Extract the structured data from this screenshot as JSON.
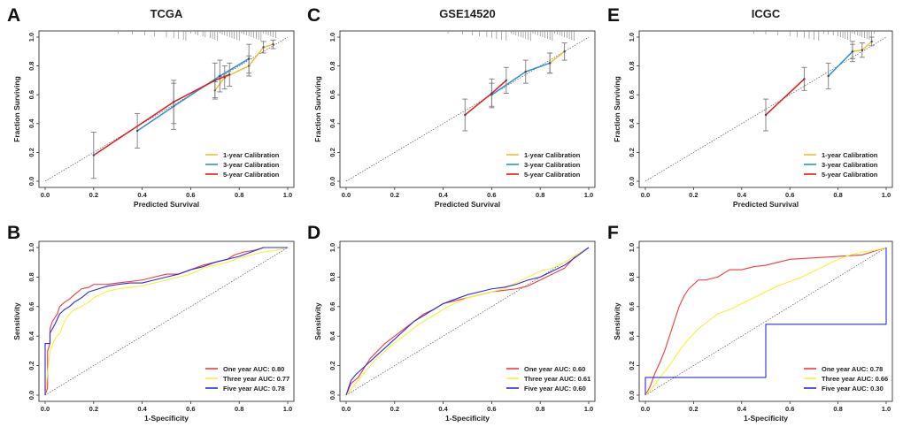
{
  "colors": {
    "yellow": "#e8c23a",
    "blue": "#2f8fd0",
    "red": "#e01b1b",
    "roc_red": "#ee3b3b",
    "roc_yellow": "#f5f03a",
    "roc_blue": "#2b2bdc",
    "grey": "#7a7a7a"
  },
  "chart_data": [
    {
      "panel": "A",
      "type": "line",
      "title": "TCGA",
      "xlabel": "Predicted  Survival",
      "ylabel": "Fraction Surviving",
      "xlim": [
        0,
        1
      ],
      "ylim": [
        0,
        1
      ],
      "xticks": [
        "0.0",
        "0.2",
        "0.4",
        "0.6",
        "0.8",
        "1.0"
      ],
      "yticks": [
        "0.0",
        "0.2",
        "0.4",
        "0.6",
        "0.8",
        "1.0"
      ],
      "legend": [
        "1-year Calibration",
        "3-year Calibration",
        "5-year Calibration"
      ],
      "rug": [
        0.3,
        0.36,
        0.41,
        0.45,
        0.5,
        0.53,
        0.55,
        0.57,
        0.58,
        0.6,
        0.62,
        0.63,
        0.65,
        0.66,
        0.68,
        0.69,
        0.7,
        0.71,
        0.72,
        0.73,
        0.74,
        0.75,
        0.76,
        0.77,
        0.78,
        0.79,
        0.8,
        0.81,
        0.82,
        0.83,
        0.84,
        0.85,
        0.86,
        0.87,
        0.88,
        0.89,
        0.9,
        0.91,
        0.92,
        0.93,
        0.94,
        0.95
      ],
      "series": [
        {
          "name": "1-year Calibration",
          "color": "yellow",
          "x": [
            0.7,
            0.74,
            0.84,
            0.9,
            0.94
          ],
          "y": [
            0.63,
            0.72,
            0.8,
            0.93,
            0.95
          ],
          "err": [
            0.06,
            0.08,
            0.07,
            0.04,
            0.03
          ]
        },
        {
          "name": "3-year Calibration",
          "color": "blue",
          "x": [
            0.38,
            0.53,
            0.72,
            0.84
          ],
          "y": [
            0.35,
            0.52,
            0.73,
            0.85
          ],
          "err": [
            0.12,
            0.16,
            0.11,
            0.1
          ]
        },
        {
          "name": "5-year Calibration",
          "color": "red",
          "x": [
            0.2,
            0.53,
            0.7,
            0.76
          ],
          "y": [
            0.18,
            0.55,
            0.7,
            0.74
          ],
          "err": [
            0.16,
            0.15,
            0.12,
            0.08
          ]
        }
      ]
    },
    {
      "panel": "C",
      "type": "line",
      "title": "GSE14520",
      "xlabel": "Predicted  Survival",
      "ylabel": "Fraction Surviving",
      "xlim": [
        0,
        1
      ],
      "ylim": [
        0,
        1
      ],
      "xticks": [
        "0.0",
        "0.2",
        "0.4",
        "0.6",
        "0.8",
        "1.0"
      ],
      "yticks": [
        "0.0",
        "0.2",
        "0.4",
        "0.6",
        "0.8",
        "1.0"
      ],
      "legend": [
        "1-year Calibration",
        "3-year Calibration",
        "5-year Calibration"
      ],
      "rug": [
        0.42,
        0.48,
        0.52,
        0.55,
        0.58,
        0.6,
        0.62,
        0.64,
        0.66,
        0.68,
        0.69,
        0.7,
        0.71,
        0.72,
        0.73,
        0.74,
        0.75,
        0.76,
        0.77,
        0.78,
        0.79,
        0.8,
        0.81,
        0.82,
        0.83,
        0.84,
        0.85,
        0.86,
        0.87,
        0.88,
        0.89,
        0.9,
        0.91,
        0.92,
        0.93,
        0.94
      ],
      "series": [
        {
          "name": "1-year Calibration",
          "color": "yellow",
          "x": [
            0.84,
            0.9
          ],
          "y": [
            0.82,
            0.9
          ],
          "err": [
            0.07,
            0.06
          ]
        },
        {
          "name": "3-year Calibration",
          "color": "blue",
          "x": [
            0.6,
            0.74,
            0.84
          ],
          "y": [
            0.6,
            0.76,
            0.82
          ],
          "err": [
            0.08,
            0.08,
            0.07
          ]
        },
        {
          "name": "5-year Calibration",
          "color": "red",
          "x": [
            0.49,
            0.6,
            0.66
          ],
          "y": [
            0.46,
            0.61,
            0.7
          ],
          "err": [
            0.11,
            0.1,
            0.09
          ]
        }
      ]
    },
    {
      "panel": "E",
      "type": "line",
      "title": "ICGC",
      "xlabel": "Predicted  Survival",
      "ylabel": "Fraction Surviving",
      "xlim": [
        0,
        1
      ],
      "ylim": [
        0,
        1
      ],
      "xticks": [
        "0.0",
        "0.2",
        "0.4",
        "0.6",
        "0.8",
        "1.0"
      ],
      "yticks": [
        "0.0",
        "0.2",
        "0.4",
        "0.6",
        "0.8",
        "1.0"
      ],
      "legend": [
        "1-year Calibration",
        "3-year Calibration",
        "5-year Calibration"
      ],
      "rug": [
        0.45,
        0.5,
        0.55,
        0.6,
        0.63,
        0.66,
        0.68,
        0.7,
        0.72,
        0.74,
        0.76,
        0.78,
        0.8,
        0.81,
        0.82,
        0.83,
        0.84,
        0.85,
        0.86,
        0.87,
        0.88,
        0.89,
        0.9,
        0.91,
        0.92,
        0.93,
        0.94,
        0.95
      ],
      "series": [
        {
          "name": "1-year Calibration",
          "color": "yellow",
          "x": [
            0.86,
            0.9,
            0.94
          ],
          "y": [
            0.9,
            0.91,
            0.97
          ],
          "err": [
            0.05,
            0.05,
            0.03
          ]
        },
        {
          "name": "3-year Calibration",
          "color": "blue",
          "x": [
            0.76,
            0.86
          ],
          "y": [
            0.73,
            0.9
          ],
          "err": [
            0.09,
            0.07
          ]
        },
        {
          "name": "5-year Calibration",
          "color": "red",
          "x": [
            0.5,
            0.66
          ],
          "y": [
            0.46,
            0.71
          ],
          "err": [
            0.11,
            0.08
          ]
        }
      ]
    },
    {
      "panel": "B",
      "type": "line",
      "subtype": "roc",
      "title": "",
      "xlabel": "1-Specificity",
      "ylabel": "Sensitivity",
      "xlim": [
        0,
        1
      ],
      "ylim": [
        0,
        1
      ],
      "xticks": [
        "0.0",
        "0.2",
        "0.4",
        "0.6",
        "0.8",
        "1.0"
      ],
      "yticks": [
        "0.0",
        "0.2",
        "0.4",
        "0.6",
        "0.8",
        "1.0"
      ],
      "legend": [
        "One year AUC: 0.80",
        "Three year AUC: 0.77",
        "Five year AUC: 0.78"
      ],
      "series": [
        {
          "name": "One year AUC: 0.80",
          "color": "roc_red",
          "x": [
            0,
            0.01,
            0.01,
            0.02,
            0.02,
            0.03,
            0.05,
            0.06,
            0.08,
            0.1,
            0.12,
            0.15,
            0.18,
            0.2,
            0.25,
            0.3,
            0.35,
            0.4,
            0.45,
            0.5,
            0.55,
            0.6,
            0.65,
            0.7,
            0.75,
            0.78,
            0.82,
            0.86,
            0.9,
            1.0
          ],
          "y": [
            0,
            0.05,
            0.3,
            0.35,
            0.45,
            0.5,
            0.55,
            0.6,
            0.63,
            0.65,
            0.68,
            0.72,
            0.73,
            0.75,
            0.75,
            0.76,
            0.77,
            0.78,
            0.8,
            0.82,
            0.82,
            0.85,
            0.88,
            0.9,
            0.92,
            0.95,
            0.97,
            0.98,
            1.0,
            1.0
          ]
        },
        {
          "name": "Three year AUC: 0.77",
          "color": "roc_yellow",
          "x": [
            0,
            0.01,
            0.02,
            0.04,
            0.06,
            0.08,
            0.1,
            0.12,
            0.15,
            0.18,
            0.2,
            0.25,
            0.3,
            0.35,
            0.4,
            0.45,
            0.5,
            0.55,
            0.6,
            0.65,
            0.7,
            0.75,
            0.8,
            0.85,
            0.9,
            0.95,
            1.0
          ],
          "y": [
            0,
            0.15,
            0.3,
            0.38,
            0.42,
            0.5,
            0.55,
            0.58,
            0.6,
            0.63,
            0.66,
            0.7,
            0.72,
            0.73,
            0.74,
            0.76,
            0.78,
            0.8,
            0.82,
            0.86,
            0.88,
            0.9,
            0.93,
            0.95,
            0.97,
            0.98,
            1.0
          ]
        },
        {
          "name": "Five year AUC: 0.78",
          "color": "roc_blue",
          "x": [
            0,
            0.0,
            0.02,
            0.02,
            0.04,
            0.06,
            0.08,
            0.1,
            0.12,
            0.15,
            0.18,
            0.22,
            0.26,
            0.3,
            0.35,
            0.4,
            0.45,
            0.5,
            0.55,
            0.6,
            0.65,
            0.7,
            0.75,
            0.8,
            0.85,
            0.9,
            1.0
          ],
          "y": [
            0,
            0.35,
            0.35,
            0.42,
            0.48,
            0.55,
            0.58,
            0.6,
            0.63,
            0.66,
            0.7,
            0.72,
            0.74,
            0.75,
            0.76,
            0.76,
            0.78,
            0.8,
            0.82,
            0.85,
            0.87,
            0.9,
            0.92,
            0.94,
            0.97,
            1.0,
            1.0
          ]
        }
      ]
    },
    {
      "panel": "D",
      "type": "line",
      "subtype": "roc",
      "title": "",
      "xlabel": "1-Specificity",
      "ylabel": "Sensitivity",
      "xlim": [
        0,
        1
      ],
      "ylim": [
        0,
        1
      ],
      "xticks": [
        "0.0",
        "0.2",
        "0.4",
        "0.6",
        "0.8",
        "1.0"
      ],
      "yticks": [
        "0.0",
        "0.2",
        "0.4",
        "0.6",
        "0.8",
        "1.0"
      ],
      "legend": [
        "One year AUC: 0.60",
        "Three year AUC: 0.61",
        "Five year AUC: 0.60"
      ],
      "series": [
        {
          "name": "One year AUC: 0.60",
          "color": "roc_red",
          "x": [
            0,
            0.02,
            0.05,
            0.08,
            0.1,
            0.13,
            0.16,
            0.2,
            0.24,
            0.28,
            0.32,
            0.36,
            0.4,
            0.45,
            0.5,
            0.55,
            0.6,
            0.65,
            0.7,
            0.75,
            0.8,
            0.85,
            0.9,
            0.95,
            1.0
          ],
          "y": [
            0,
            0.08,
            0.12,
            0.2,
            0.25,
            0.3,
            0.35,
            0.4,
            0.45,
            0.5,
            0.55,
            0.58,
            0.62,
            0.64,
            0.66,
            0.68,
            0.7,
            0.71,
            0.72,
            0.74,
            0.78,
            0.82,
            0.86,
            0.95,
            1.0
          ]
        },
        {
          "name": "Three year AUC: 0.61",
          "color": "roc_yellow",
          "x": [
            0,
            0.03,
            0.06,
            0.09,
            0.12,
            0.15,
            0.18,
            0.22,
            0.26,
            0.3,
            0.34,
            0.38,
            0.42,
            0.46,
            0.5,
            0.55,
            0.6,
            0.65,
            0.7,
            0.75,
            0.8,
            0.85,
            0.9,
            0.95,
            1.0
          ],
          "y": [
            0,
            0.06,
            0.12,
            0.18,
            0.24,
            0.28,
            0.33,
            0.38,
            0.43,
            0.48,
            0.52,
            0.56,
            0.6,
            0.63,
            0.66,
            0.68,
            0.7,
            0.72,
            0.76,
            0.8,
            0.84,
            0.86,
            0.9,
            0.95,
            1.0
          ]
        },
        {
          "name": "Five year AUC: 0.60",
          "color": "roc_blue",
          "x": [
            0,
            0.02,
            0.04,
            0.08,
            0.12,
            0.16,
            0.2,
            0.24,
            0.28,
            0.32,
            0.36,
            0.4,
            0.45,
            0.5,
            0.55,
            0.6,
            0.65,
            0.7,
            0.75,
            0.8,
            0.85,
            0.9,
            0.95,
            1.0
          ],
          "y": [
            0,
            0.1,
            0.14,
            0.2,
            0.26,
            0.32,
            0.38,
            0.44,
            0.5,
            0.54,
            0.58,
            0.62,
            0.65,
            0.68,
            0.7,
            0.72,
            0.73,
            0.75,
            0.78,
            0.8,
            0.84,
            0.88,
            0.94,
            1.0
          ]
        }
      ]
    },
    {
      "panel": "F",
      "type": "line",
      "subtype": "roc",
      "title": "",
      "xlabel": "1-Specificity",
      "ylabel": "Sensitivity",
      "xlim": [
        0,
        1
      ],
      "ylim": [
        0,
        1
      ],
      "xticks": [
        "0.0",
        "0.2",
        "0.4",
        "0.6",
        "0.8",
        "1.0"
      ],
      "yticks": [
        "0.0",
        "0.2",
        "0.4",
        "0.6",
        "0.8",
        "1.0"
      ],
      "legend": [
        "One year AUC: 0.78",
        "Three year AUC: 0.66",
        "Five year AUC: 0.30"
      ],
      "series": [
        {
          "name": "One year AUC: 0.78",
          "color": "roc_red",
          "x": [
            0,
            0.02,
            0.04,
            0.06,
            0.08,
            0.1,
            0.12,
            0.14,
            0.16,
            0.18,
            0.2,
            0.22,
            0.25,
            0.3,
            0.35,
            0.4,
            0.45,
            0.5,
            0.55,
            0.6,
            0.7,
            0.8,
            0.9,
            1.0
          ],
          "y": [
            0,
            0.06,
            0.15,
            0.22,
            0.3,
            0.4,
            0.5,
            0.6,
            0.67,
            0.72,
            0.75,
            0.78,
            0.78,
            0.8,
            0.85,
            0.85,
            0.87,
            0.88,
            0.9,
            0.92,
            0.93,
            0.94,
            0.95,
            1.0
          ]
        },
        {
          "name": "Three year AUC: 0.66",
          "color": "roc_yellow",
          "x": [
            0,
            0.03,
            0.06,
            0.1,
            0.14,
            0.18,
            0.22,
            0.26,
            0.3,
            0.35,
            0.4,
            0.45,
            0.5,
            0.55,
            0.6,
            0.65,
            0.7,
            0.75,
            0.8,
            0.85,
            0.9,
            0.95,
            1.0
          ],
          "y": [
            0,
            0.05,
            0.12,
            0.2,
            0.3,
            0.38,
            0.45,
            0.5,
            0.55,
            0.58,
            0.62,
            0.66,
            0.7,
            0.74,
            0.77,
            0.8,
            0.84,
            0.88,
            0.92,
            0.95,
            0.97,
            0.98,
            1.0
          ]
        },
        {
          "name": "Five year AUC: 0.30",
          "color": "roc_blue",
          "x": [
            0,
            0.0,
            0.5,
            0.5,
            1.0,
            1.0
          ],
          "y": [
            0,
            0.12,
            0.12,
            0.48,
            0.48,
            1.0
          ]
        }
      ]
    }
  ]
}
